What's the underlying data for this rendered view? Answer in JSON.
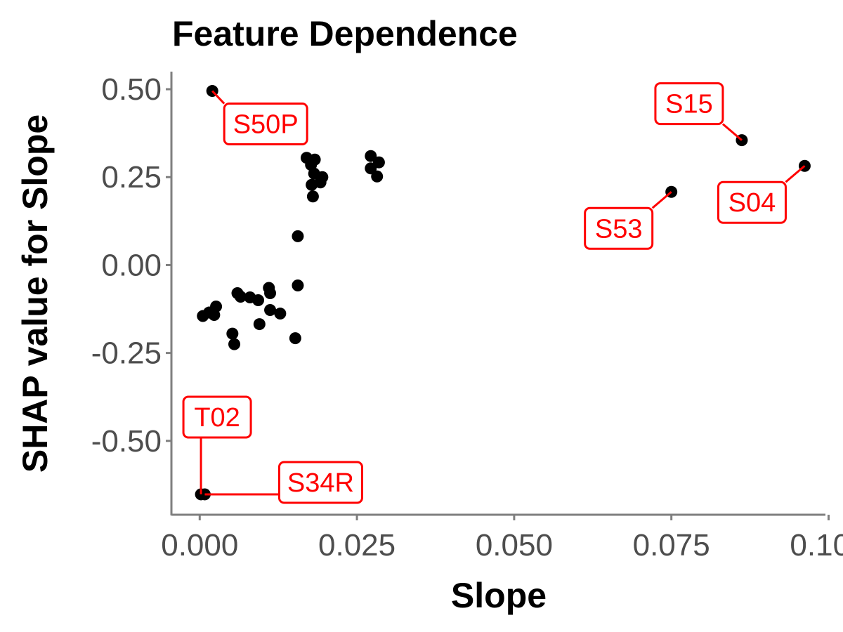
{
  "chart_data": {
    "type": "scatter",
    "title": "Feature Dependence",
    "xlabel": "Slope",
    "ylabel": "SHAP value for Slope",
    "xlim": [
      -0.0045,
      0.0995
    ],
    "ylim": [
      -0.71,
      0.55
    ],
    "x_ticks": [
      0,
      0.025,
      0.05,
      0.075,
      0.1
    ],
    "x_tick_labels": [
      "0.000",
      "0.025",
      "0.050",
      "0.075",
      "0.100"
    ],
    "y_ticks": [
      -0.5,
      -0.25,
      0,
      0.25,
      0.5
    ],
    "y_tick_labels": [
      "-0.50",
      "-0.25",
      "0.00",
      "0.25",
      "0.50"
    ],
    "grid": false,
    "point_color": "#000000",
    "label_color": "#ff0000",
    "points": [
      {
        "x": 0.002,
        "y": 0.495,
        "label": "S50P"
      },
      {
        "x": 0.017,
        "y": 0.305
      },
      {
        "x": 0.0183,
        "y": 0.3
      },
      {
        "x": 0.0177,
        "y": 0.285
      },
      {
        "x": 0.0182,
        "y": 0.26
      },
      {
        "x": 0.0195,
        "y": 0.25
      },
      {
        "x": 0.0192,
        "y": 0.235
      },
      {
        "x": 0.0178,
        "y": 0.228
      },
      {
        "x": 0.018,
        "y": 0.195
      },
      {
        "x": 0.0272,
        "y": 0.31
      },
      {
        "x": 0.0285,
        "y": 0.292
      },
      {
        "x": 0.0272,
        "y": 0.275
      },
      {
        "x": 0.0282,
        "y": 0.252
      },
      {
        "x": 0.0156,
        "y": 0.082
      },
      {
        "x": 0.0156,
        "y": -0.058
      },
      {
        "x": 0.0152,
        "y": -0.208
      },
      {
        "x": 0.0005,
        "y": -0.145
      },
      {
        "x": 0.0015,
        "y": -0.135
      },
      {
        "x": 0.0023,
        "y": -0.142
      },
      {
        "x": 0.0026,
        "y": -0.118
      },
      {
        "x": 0.006,
        "y": -0.08
      },
      {
        "x": 0.0065,
        "y": -0.09
      },
      {
        "x": 0.008,
        "y": -0.092
      },
      {
        "x": 0.0093,
        "y": -0.1
      },
      {
        "x": 0.011,
        "y": -0.065
      },
      {
        "x": 0.0112,
        "y": -0.08
      },
      {
        "x": 0.0112,
        "y": -0.128
      },
      {
        "x": 0.0128,
        "y": -0.138
      },
      {
        "x": 0.0095,
        "y": -0.168
      },
      {
        "x": 0.0052,
        "y": -0.195
      },
      {
        "x": 0.0055,
        "y": -0.225
      },
      {
        "x": 0.0002,
        "y": -0.652,
        "label": "T02"
      },
      {
        "x": 0.0008,
        "y": -0.652,
        "label": "S34R"
      },
      {
        "x": 0.075,
        "y": 0.208,
        "label": "S53"
      },
      {
        "x": 0.0862,
        "y": 0.355,
        "label": "S15"
      },
      {
        "x": 0.0962,
        "y": 0.282,
        "label": "S04"
      }
    ]
  }
}
